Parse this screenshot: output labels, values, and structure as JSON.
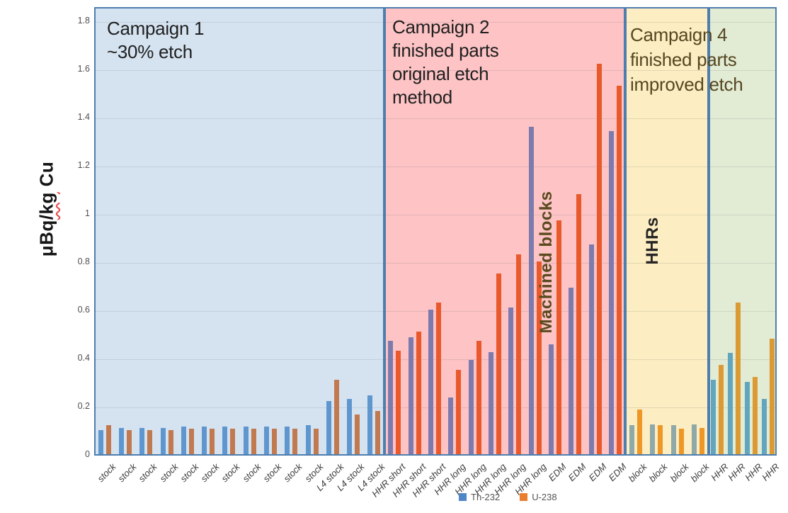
{
  "y_axis": {
    "title_parts": [
      "μBq",
      "/kg",
      " Cu"
    ],
    "ticks": [
      {
        "v": 0.0,
        "label": "0"
      },
      {
        "v": 0.2,
        "label": "0.2"
      },
      {
        "v": 0.4,
        "label": "0.4"
      },
      {
        "v": 0.6,
        "label": "0.6"
      },
      {
        "v": 0.8,
        "label": "0.8"
      },
      {
        "v": 1.0,
        "label": "1"
      },
      {
        "v": 1.2,
        "label": "1.2"
      },
      {
        "v": 1.4,
        "label": "1.4"
      },
      {
        "v": 1.6,
        "label": "1.6"
      },
      {
        "v": 1.8,
        "label": "1.8"
      }
    ]
  },
  "legend": {
    "items": [
      {
        "label": "Th-232",
        "color": "#4E86C6"
      },
      {
        "label": "U-238",
        "color": "#EA7E30"
      }
    ]
  },
  "chart_data": {
    "type": "bar",
    "ylabel": "μBq/kg Cu",
    "ylim": [
      0,
      1.8
    ],
    "grid": true,
    "series_names": [
      "Th-232",
      "U-238"
    ],
    "overlay_title": {
      "lines": [
        "Campaign 4",
        "finished parts",
        "improved etch"
      ],
      "color": "#554722"
    },
    "regions": [
      {
        "name": "campaign-1",
        "title_lines": [
          "Campaign 1",
          "~30% etch"
        ],
        "title_color": "#1f1f1f",
        "bg": "#D5E3F1",
        "border": "#4E7EAE",
        "bar_colors": [
          "#6096CE",
          "#C1794F"
        ],
        "groups": [
          {
            "label": "stock",
            "values": [
              0.1,
              0.12
            ]
          },
          {
            "label": "stock",
            "values": [
              0.11,
              0.1
            ]
          },
          {
            "label": "stock",
            "values": [
              0.11,
              0.1
            ]
          },
          {
            "label": "stock",
            "values": [
              0.11,
              0.1
            ]
          },
          {
            "label": "stock",
            "values": [
              0.115,
              0.105
            ]
          },
          {
            "label": "stock",
            "values": [
              0.115,
              0.105
            ]
          },
          {
            "label": "stock",
            "values": [
              0.115,
              0.105
            ]
          },
          {
            "label": "stock",
            "values": [
              0.115,
              0.105
            ]
          },
          {
            "label": "stock",
            "values": [
              0.115,
              0.105
            ]
          },
          {
            "label": "stock",
            "values": [
              0.115,
              0.105
            ]
          },
          {
            "label": "stock",
            "values": [
              0.12,
              0.105
            ]
          },
          {
            "label": "L4 stock",
            "values": [
              0.22,
              0.31
            ]
          },
          {
            "label": "L4 stock",
            "values": [
              0.23,
              0.165
            ]
          },
          {
            "label": "L4 stock",
            "values": [
              0.245,
              0.18
            ]
          }
        ]
      },
      {
        "name": "campaign-2",
        "title_lines": [
          "Campaign 2",
          "finished parts",
          "original etch",
          "method"
        ],
        "title_color": "#1f1f1f",
        "bg": "#FDC3C5",
        "border": "#4E7EAE",
        "bar_colors": [
          "#7D7AAD",
          "#EA592B"
        ],
        "groups": [
          {
            "label": "HHR short",
            "values": [
              0.47,
              0.43
            ]
          },
          {
            "label": "HHR short",
            "values": [
              0.485,
              0.51
            ]
          },
          {
            "label": "HHR short",
            "values": [
              0.6,
              0.63
            ]
          },
          {
            "label": "HHR long",
            "values": [
              0.235,
              0.35
            ]
          },
          {
            "label": "HHR long",
            "values": [
              0.39,
              0.47
            ]
          },
          {
            "label": "HHR long",
            "values": [
              0.425,
              0.75
            ]
          },
          {
            "label": "HHR long",
            "values": [
              0.61,
              0.83
            ]
          },
          {
            "label": "HHR long",
            "values": [
              1.36,
              0.8
            ]
          },
          {
            "label": "EDM",
            "values": [
              0.455,
              0.97
            ]
          },
          {
            "label": "EDM",
            "values": [
              0.69,
              1.08
            ]
          },
          {
            "label": "EDM",
            "values": [
              0.87,
              1.62
            ]
          },
          {
            "label": "EDM",
            "values": [
              1.34,
              1.53
            ]
          }
        ]
      },
      {
        "name": "campaign-4-machined-blocks",
        "vertical_label": "Machined blocks",
        "vertical_label_color": "#5a4a1f",
        "bg": "#FCEDC2",
        "border": "#4E7EAE",
        "bar_colors": [
          "#8FA8A8",
          "#EE9726"
        ],
        "groups": [
          {
            "label": "block",
            "values": [
              0.12,
              0.185
            ]
          },
          {
            "label": "block",
            "values": [
              0.125,
              0.12
            ]
          },
          {
            "label": "block",
            "values": [
              0.12,
              0.105
            ]
          },
          {
            "label": "block",
            "values": [
              0.125,
              0.11
            ]
          }
        ]
      },
      {
        "name": "campaign-4-hhrs",
        "vertical_label": "HHRs",
        "vertical_label_color": "#262626",
        "bg": "#E2EBD4",
        "border": "#4E7EAE",
        "bar_colors": [
          "#62A5BE",
          "#DC9A35"
        ],
        "groups": [
          {
            "label": "HHR",
            "values": [
              0.31,
              0.37
            ]
          },
          {
            "label": "HHR",
            "values": [
              0.42,
              0.63
            ]
          },
          {
            "label": "HHR",
            "values": [
              0.3,
              0.32
            ]
          },
          {
            "label": "HHR",
            "values": [
              0.23,
              0.48
            ]
          }
        ]
      }
    ]
  }
}
